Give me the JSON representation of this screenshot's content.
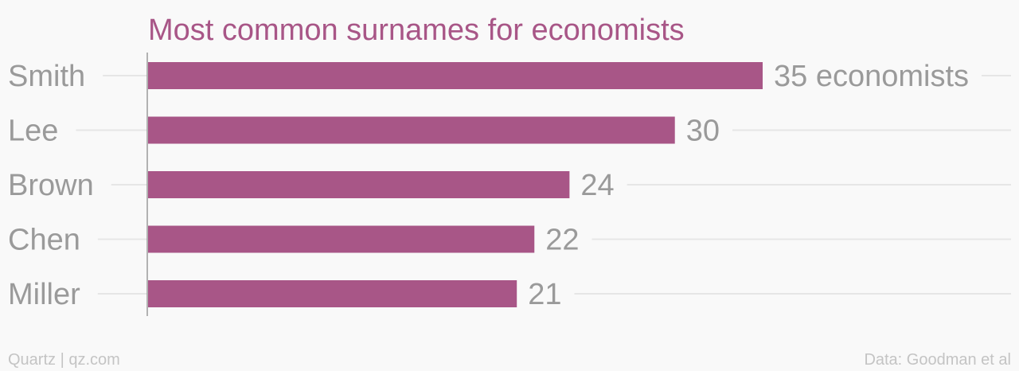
{
  "chart_data": {
    "type": "bar",
    "orientation": "horizontal",
    "title": "Most common surnames for economists",
    "categories": [
      "Smith",
      "Lee",
      "Brown",
      "Chen",
      "Miller"
    ],
    "values": [
      35,
      30,
      24,
      22,
      21
    ],
    "value_labels": [
      "35 economists",
      "30",
      "24",
      "22",
      "21"
    ],
    "xlim": [
      0,
      35
    ],
    "grid": true,
    "bar_color": "#a85687",
    "title_color": "#a85687"
  },
  "footer": {
    "source_left": "Quartz | qz.com",
    "source_right": "Data: Goodman et al"
  }
}
